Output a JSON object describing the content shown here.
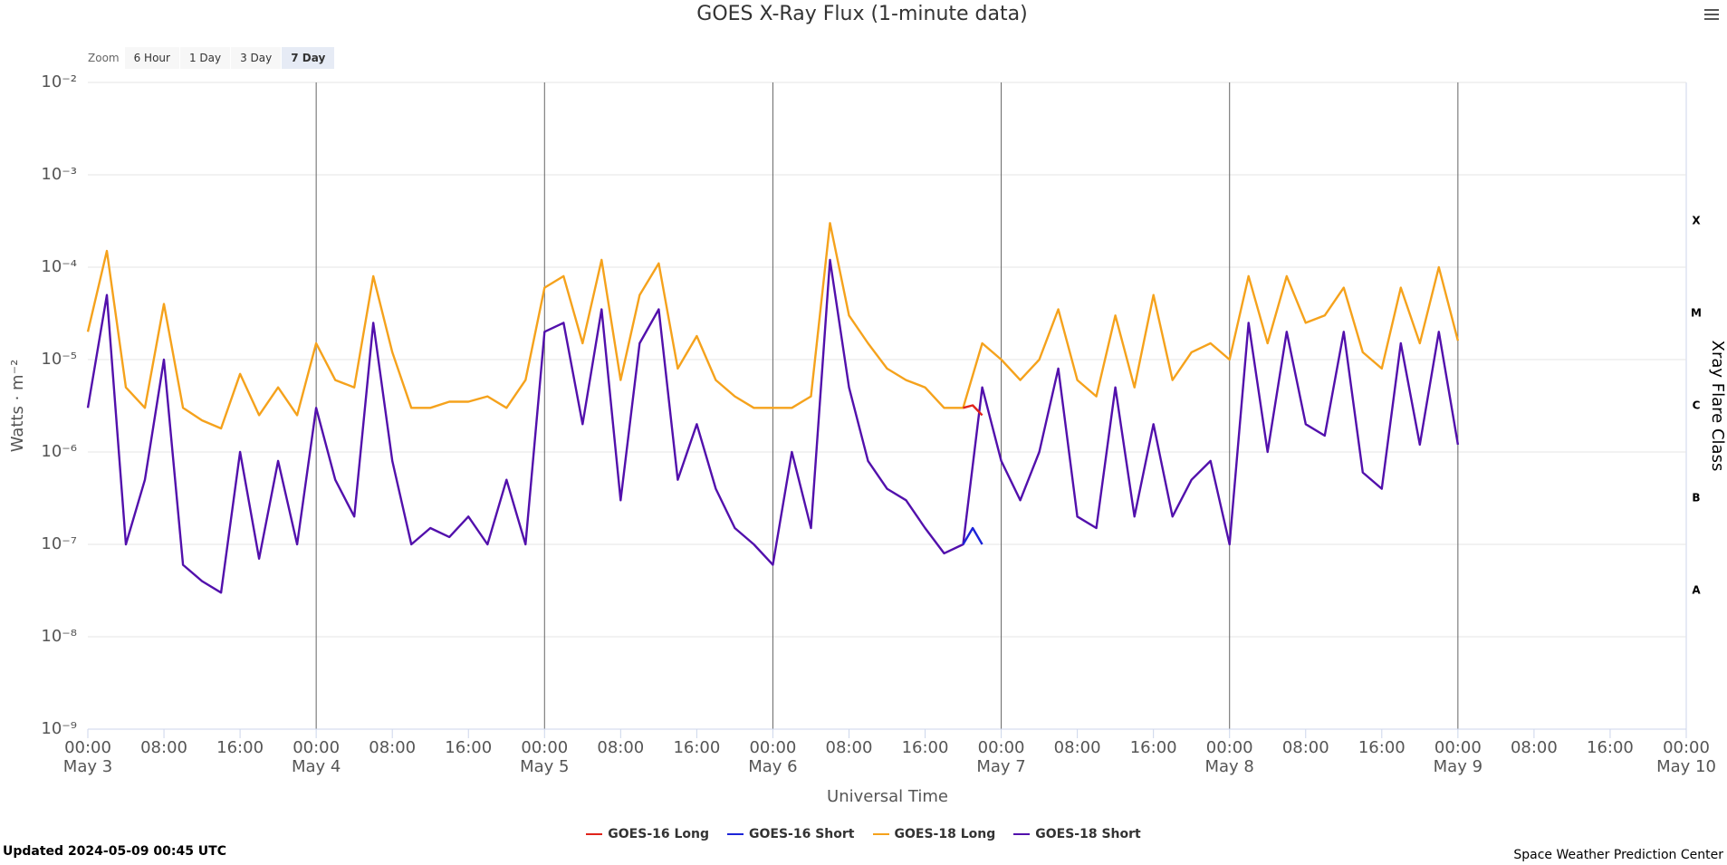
{
  "chart_data": {
    "type": "line",
    "title": "GOES X-Ray Flux (1-minute data)",
    "x_label": "Universal Time",
    "y_label": "Watts · m⁻²",
    "y2_label": "Xray Flare Class",
    "log_y": true,
    "grid": true,
    "xlim": [
      "May 3 00:00",
      "May 10 00:00"
    ],
    "xticks": [
      {
        "value": "May 3 00:00",
        "label": "00:00\nMay 3"
      },
      {
        "value": "May 3 08:00",
        "label": "08:00"
      },
      {
        "value": "May 3 16:00",
        "label": "16:00"
      },
      {
        "value": "May 4 00:00",
        "label": "00:00\nMay 4"
      },
      {
        "value": "May 4 08:00",
        "label": "08:00"
      },
      {
        "value": "May 4 16:00",
        "label": "16:00"
      },
      {
        "value": "May 5 00:00",
        "label": "00:00\nMay 5"
      },
      {
        "value": "May 5 08:00",
        "label": "08:00"
      },
      {
        "value": "May 5 16:00",
        "label": "16:00"
      },
      {
        "value": "May 6 00:00",
        "label": "00:00\nMay 6"
      },
      {
        "value": "May 6 08:00",
        "label": "08:00"
      },
      {
        "value": "May 6 16:00",
        "label": "16:00"
      },
      {
        "value": "May 7 00:00",
        "label": "00:00\nMay 7"
      },
      {
        "value": "May 7 08:00",
        "label": "08:00"
      },
      {
        "value": "May 7 16:00",
        "label": "16:00"
      },
      {
        "value": "May 8 00:00",
        "label": "00:00\nMay 8"
      },
      {
        "value": "May 8 08:00",
        "label": "08:00"
      },
      {
        "value": "May 8 16:00",
        "label": "16:00"
      },
      {
        "value": "May 9 00:00",
        "label": "00:00\nMay 9"
      },
      {
        "value": "May 9 08:00",
        "label": "08:00"
      },
      {
        "value": "May 9 16:00",
        "label": "16:00"
      },
      {
        "value": "May 10 00:00",
        "label": "00:00\nMay 10"
      }
    ],
    "ylim": [
      1e-09,
      0.01
    ],
    "yticks": [
      {
        "value": 1e-09,
        "label": "10⁻⁹"
      },
      {
        "value": 1e-08,
        "label": "10⁻⁸"
      },
      {
        "value": 1e-07,
        "label": "10⁻⁷"
      },
      {
        "value": 1e-06,
        "label": "10⁻⁶"
      },
      {
        "value": 1e-05,
        "label": "10⁻⁵"
      },
      {
        "value": 0.0001,
        "label": "10⁻⁴"
      },
      {
        "value": 0.001,
        "label": "10⁻³"
      },
      {
        "value": 0.01,
        "label": "10⁻²"
      }
    ],
    "y2lim": [
      1e-09,
      0.01
    ],
    "y2ticks": [
      {
        "value": 3.16e-08,
        "label": "A"
      },
      {
        "value": 3.16e-07,
        "label": "B"
      },
      {
        "value": 3.16e-06,
        "label": "C"
      },
      {
        "value": 3.16e-05,
        "label": "M"
      },
      {
        "value": 0.000316,
        "label": "X"
      }
    ],
    "x": [
      "May 3 00:00",
      "May 3 02:00",
      "May 3 04:00",
      "May 3 06:00",
      "May 3 08:00",
      "May 3 10:00",
      "May 3 12:00",
      "May 3 14:00",
      "May 3 16:00",
      "May 3 18:00",
      "May 3 20:00",
      "May 3 22:00",
      "May 4 00:00",
      "May 4 02:00",
      "May 4 04:00",
      "May 4 06:00",
      "May 4 08:00",
      "May 4 10:00",
      "May 4 12:00",
      "May 4 14:00",
      "May 4 16:00",
      "May 4 18:00",
      "May 4 20:00",
      "May 4 22:00",
      "May 5 00:00",
      "May 5 02:00",
      "May 5 04:00",
      "May 5 06:00",
      "May 5 08:00",
      "May 5 10:00",
      "May 5 12:00",
      "May 5 14:00",
      "May 5 16:00",
      "May 5 18:00",
      "May 5 20:00",
      "May 5 22:00",
      "May 6 00:00",
      "May 6 02:00",
      "May 6 04:00",
      "May 6 06:00",
      "May 6 08:00",
      "May 6 10:00",
      "May 6 12:00",
      "May 6 14:00",
      "May 6 16:00",
      "May 6 18:00",
      "May 6 20:00",
      "May 6 22:00",
      "May 7 00:00",
      "May 7 02:00",
      "May 7 04:00",
      "May 7 06:00",
      "May 7 08:00",
      "May 7 10:00",
      "May 7 12:00",
      "May 7 14:00",
      "May 7 16:00",
      "May 7 18:00",
      "May 7 20:00",
      "May 7 22:00",
      "May 8 00:00",
      "May 8 02:00",
      "May 8 04:00",
      "May 8 06:00",
      "May 8 08:00",
      "May 8 10:00",
      "May 8 12:00",
      "May 8 14:00",
      "May 8 16:00",
      "May 8 18:00",
      "May 8 20:00",
      "May 8 22:00",
      "May 9 00:00"
    ],
    "series": [
      {
        "name": "GOES-16 Long",
        "color": "#e0231b",
        "x": [
          "May 6 20:00",
          "May 6 21:00",
          "May 6 22:00"
        ],
        "values": [
          3e-06,
          3.2e-06,
          2.5e-06
        ]
      },
      {
        "name": "GOES-16 Short",
        "color": "#1c24d8",
        "x": [
          "May 6 20:00",
          "May 6 21:00",
          "May 6 22:00"
        ],
        "values": [
          1e-07,
          1.5e-07,
          1e-07
        ]
      },
      {
        "name": "GOES-18 Long",
        "color": "#f5a21c",
        "values": [
          2e-05,
          0.00015,
          5e-06,
          3e-06,
          4e-05,
          3e-06,
          2.2e-06,
          1.8e-06,
          7e-06,
          2.5e-06,
          5e-06,
          2.5e-06,
          1.5e-05,
          6e-06,
          5e-06,
          8e-05,
          1.2e-05,
          3e-06,
          3e-06,
          3.5e-06,
          3.5e-06,
          4e-06,
          3e-06,
          6e-06,
          6e-05,
          8e-05,
          1.5e-05,
          0.00012,
          6e-06,
          5e-05,
          0.00011,
          8e-06,
          1.8e-05,
          6e-06,
          4e-06,
          3e-06,
          3e-06,
          3e-06,
          4e-06,
          0.0003,
          3e-05,
          1.5e-05,
          8e-06,
          6e-06,
          5e-06,
          3e-06,
          3e-06,
          1.5e-05,
          1e-05,
          6e-06,
          1e-05,
          3.5e-05,
          6e-06,
          4e-06,
          3e-05,
          5e-06,
          5e-05,
          6e-06,
          1.2e-05,
          1.5e-05,
          1e-05,
          8e-05,
          1.5e-05,
          8e-05,
          2.5e-05,
          3e-05,
          6e-05,
          1.2e-05,
          8e-06,
          6e-05,
          1.5e-05,
          0.0001,
          1.6e-05
        ]
      },
      {
        "name": "GOES-18 Short",
        "color": "#5210ac",
        "values": [
          3e-06,
          5e-05,
          1e-07,
          5e-07,
          1e-05,
          6e-08,
          4e-08,
          3e-08,
          1e-06,
          7e-08,
          8e-07,
          1e-07,
          3e-06,
          5e-07,
          2e-07,
          2.5e-05,
          8e-07,
          1e-07,
          1.5e-07,
          1.2e-07,
          2e-07,
          1e-07,
          5e-07,
          1e-07,
          2e-05,
          2.5e-05,
          2e-06,
          3.5e-05,
          3e-07,
          1.5e-05,
          3.5e-05,
          5e-07,
          2e-06,
          4e-07,
          1.5e-07,
          1e-07,
          6e-08,
          1e-06,
          1.5e-07,
          0.00012,
          5e-06,
          8e-07,
          4e-07,
          3e-07,
          1.5e-07,
          8e-08,
          1e-07,
          5e-06,
          8e-07,
          3e-07,
          1e-06,
          8e-06,
          2e-07,
          1.5e-07,
          5e-06,
          2e-07,
          2e-06,
          2e-07,
          5e-07,
          8e-07,
          1e-07,
          2.5e-05,
          1e-06,
          2e-05,
          2e-06,
          1.5e-06,
          2e-05,
          6e-07,
          4e-07,
          1.5e-05,
          1.2e-06,
          2e-05,
          1.2e-06
        ]
      }
    ]
  },
  "zoom": {
    "label": "Zoom",
    "buttons": [
      "6 Hour",
      "1 Day",
      "3 Day",
      "7 Day"
    ],
    "active": 3
  },
  "footer": {
    "updated": "Updated 2024-05-09 00:45 UTC",
    "credit": "Space Weather Prediction Center"
  }
}
